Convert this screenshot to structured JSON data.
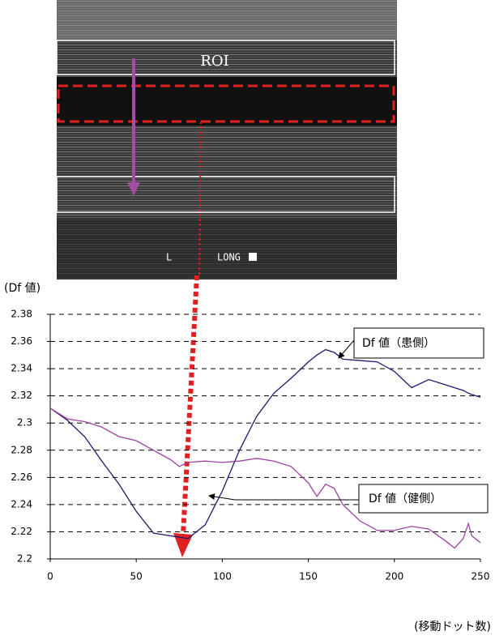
{
  "image": {
    "roi_label": "ROI",
    "labels": [
      "L",
      "LONG"
    ]
  },
  "chart_data": {
    "type": "line",
    "y_label": "(Df 値)",
    "x_label": "(移動ドット数)",
    "annotations": [
      "Df 値（患側）",
      "Df 値（健側）"
    ],
    "x": [
      0,
      10,
      20,
      30,
      40,
      50,
      60,
      70,
      75,
      80,
      90,
      100,
      110,
      120,
      130,
      140,
      150,
      155,
      160,
      165,
      170,
      180,
      190,
      200,
      210,
      220,
      230,
      235,
      240,
      243,
      245,
      250
    ],
    "series": [
      {
        "name": "Df 値（患側）",
        "color": "#1a1a6e",
        "values": [
          2.311,
          2.302,
          2.29,
          2.272,
          2.255,
          2.235,
          2.219,
          2.217,
          2.216,
          2.215,
          2.225,
          2.25,
          2.28,
          2.305,
          2.322,
          2.333,
          2.345,
          2.35,
          2.354,
          2.352,
          2.347,
          2.346,
          2.345,
          2.338,
          2.326,
          2.332,
          2.328,
          2.326,
          2.324,
          2.322,
          2.321,
          2.319
        ]
      },
      {
        "name": "Df 値（健側）",
        "color": "#a040a0",
        "values": [
          2.311,
          2.303,
          2.301,
          2.297,
          2.29,
          2.287,
          2.28,
          2.273,
          2.268,
          2.271,
          2.272,
          2.271,
          2.272,
          2.274,
          2.272,
          2.268,
          2.256,
          2.246,
          2.255,
          2.252,
          2.24,
          2.228,
          2.221,
          2.221,
          2.224,
          2.222,
          2.213,
          2.208,
          2.215,
          2.226,
          2.217,
          2.212
        ]
      }
    ],
    "xlim": [
      0,
      250
    ],
    "xticks": [
      0,
      50,
      100,
      150,
      200,
      250
    ],
    "ylim": [
      2.2,
      2.38
    ],
    "yticks": [
      2.2,
      2.22,
      2.24,
      2.26,
      2.28,
      2.3,
      2.32,
      2.34,
      2.36,
      2.38
    ],
    "grid": true
  }
}
